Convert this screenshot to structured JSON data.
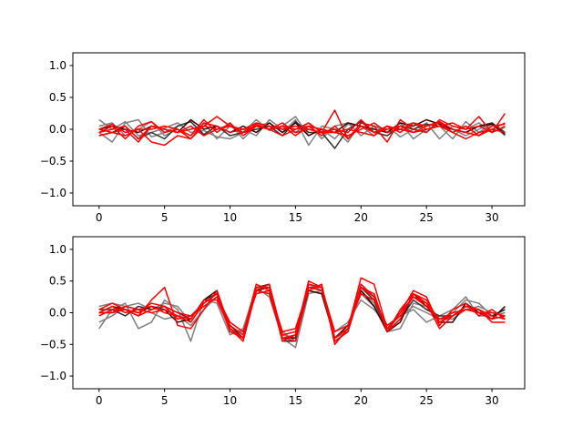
{
  "chart_data": [
    {
      "type": "line",
      "xlim": [
        -2,
        32.5
      ],
      "ylim": [
        -1.2,
        1.2
      ],
      "xticks": [
        0,
        5,
        10,
        15,
        20,
        25,
        30
      ],
      "yticks": [
        -1.0,
        -0.5,
        0.0,
        0.5,
        1.0
      ],
      "xtick_labels": [
        "0",
        "5",
        "10",
        "15",
        "20",
        "25",
        "30"
      ],
      "ytick_labels": [
        "−1.0",
        "−0.5",
        "0.0",
        "0.5",
        "1.0"
      ],
      "x": [
        0,
        1,
        2,
        3,
        4,
        5,
        6,
        7,
        8,
        9,
        10,
        11,
        12,
        13,
        14,
        15,
        16,
        17,
        18,
        19,
        20,
        21,
        22,
        23,
        24,
        25,
        26,
        27,
        28,
        29,
        30,
        31
      ],
      "series": [
        {
          "color": "#7f7f7f",
          "values": [
            0.15,
            0.0,
            0.12,
            -0.1,
            -0.05,
            0.02,
            0.1,
            -0.05,
            -0.02,
            -0.12,
            -0.15,
            -0.05,
            0.15,
            -0.02,
            0.05,
            0.2,
            -0.1,
            0.0,
            -0.15,
            0.08,
            0.05,
            -0.1,
            0.05,
            -0.12,
            0.0,
            0.1,
            -0.15,
            0.05,
            0.0,
            0.1,
            -0.05,
            0.03
          ]
        },
        {
          "color": "#7f7f7f",
          "values": [
            -0.05,
            -0.2,
            0.1,
            0.15,
            -0.12,
            -0.05,
            0.05,
            0.12,
            -0.1,
            0.0,
            0.08,
            -0.15,
            0.05,
            0.1,
            -0.05,
            0.15,
            -0.25,
            0.05,
            0.0,
            -0.2,
            0.1,
            0.05,
            -0.05,
            0.1,
            -0.15,
            0.0,
            0.05,
            -0.15,
            0.12,
            -0.05,
            0.08,
            -0.1
          ]
        },
        {
          "color": "#7f7f7f",
          "values": [
            0.05,
            0.1,
            -0.1,
            0.0,
            0.12,
            -0.1,
            0.0,
            -0.1,
            0.1,
            -0.15,
            0.05,
            0.0,
            -0.1,
            0.15,
            0.0,
            -0.05,
            0.1,
            -0.15,
            0.05,
            0.1,
            -0.1,
            0.05,
            0.0,
            0.05,
            0.1,
            -0.05,
            0.12,
            0.0,
            -0.1,
            0.0,
            0.1,
            -0.08
          ]
        },
        {
          "color": "#333333",
          "values": [
            -0.1,
            -0.05,
            0.05,
            -0.15,
            -0.05,
            -0.15,
            0.05,
            0.12,
            -0.08,
            0.05,
            -0.1,
            -0.05,
            0.0,
            0.05,
            -0.1,
            0.12,
            -0.05,
            -0.05,
            -0.3,
            0.0,
            0.12,
            -0.05,
            -0.1,
            0.05,
            0.0,
            0.08,
            0.05,
            0.0,
            -0.05,
            0.05,
            0.1,
            -0.05
          ]
        },
        {
          "color": "#3a0000",
          "values": [
            0.0,
            0.05,
            0.0,
            -0.05,
            0.05,
            0.0,
            -0.05,
            0.15,
            0.0,
            0.05,
            -0.05,
            0.05,
            -0.05,
            0.1,
            -0.05,
            0.1,
            -0.1,
            0.0,
            -0.05,
            0.1,
            0.05,
            0.0,
            -0.05,
            0.1,
            0.05,
            0.15,
            0.08,
            0.0,
            -0.05,
            0.05,
            0.08,
            -0.08
          ]
        },
        {
          "color": "#ff0000",
          "values": [
            -0.05,
            0.0,
            0.05,
            -0.15,
            0.05,
            0.0,
            -0.05,
            0.0,
            0.05,
            0.2,
            0.05,
            -0.05,
            0.05,
            0.0,
            0.1,
            -0.05,
            0.0,
            -0.05,
            0.3,
            -0.15,
            0.1,
            0.05,
            -0.2,
            0.15,
            0.0,
            -0.05,
            0.15,
            0.05,
            0.0,
            0.2,
            -0.05,
            0.25
          ]
        },
        {
          "color": "#ff0000",
          "values": [
            0.0,
            0.08,
            -0.05,
            0.0,
            0.0,
            0.05,
            0.0,
            -0.1,
            0.15,
            -0.05,
            0.1,
            -0.1,
            0.05,
            0.0,
            -0.1,
            0.0,
            0.1,
            -0.05,
            0.0,
            -0.05,
            0.15,
            -0.05,
            0.05,
            0.0,
            0.1,
            0.05,
            0.1,
            -0.05,
            0.05,
            -0.1,
            0.05,
            0.08
          ]
        },
        {
          "color": "#ff0000",
          "values": [
            -0.1,
            -0.05,
            0.0,
            -0.2,
            0.05,
            0.0,
            -0.05,
            0.05,
            -0.1,
            0.0,
            0.05,
            -0.05,
            0.08,
            0.0,
            0.05,
            -0.1,
            0.05,
            -0.1,
            0.05,
            -0.15,
            0.05,
            -0.05,
            0.0,
            0.05,
            -0.05,
            0.05,
            0.12,
            0.0,
            -0.05,
            -0.1,
            0.0,
            -0.05
          ]
        },
        {
          "color": "#ff0000",
          "values": [
            -0.05,
            0.05,
            -0.15,
            0.05,
            0.12,
            -0.05,
            0.0,
            -0.15,
            0.05,
            0.0,
            0.05,
            0.0,
            0.05,
            0.0,
            0.05,
            0.0,
            0.05,
            0.0,
            -0.05,
            -0.1,
            0.0,
            0.1,
            -0.05,
            0.0,
            -0.05,
            0.0,
            0.05,
            -0.05,
            -0.15,
            -0.05,
            0.0,
            0.1
          ]
        },
        {
          "color": "#ff0000",
          "values": [
            0.0,
            -0.05,
            -0.1,
            0.0,
            -0.2,
            -0.25,
            -0.1,
            -0.15,
            0.1,
            0.05,
            -0.05,
            0.0,
            0.1,
            0.05,
            0.0,
            0.05,
            0.0,
            -0.05,
            -0.05,
            0.0,
            -0.05,
            -0.1,
            0.05,
            -0.05,
            0.1,
            0.0,
            0.05,
            0.1,
            0.0,
            0.05,
            -0.05,
            0.05
          ]
        }
      ]
    },
    {
      "type": "line",
      "xlim": [
        -2,
        32.5
      ],
      "ylim": [
        -1.2,
        1.2
      ],
      "xticks": [
        0,
        5,
        10,
        15,
        20,
        25,
        30
      ],
      "yticks": [
        -1.0,
        -0.5,
        0.0,
        0.5,
        1.0
      ],
      "xtick_labels": [
        "0",
        "5",
        "10",
        "15",
        "20",
        "25",
        "30"
      ],
      "ytick_labels": [
        "−1.0",
        "−0.5",
        "0.0",
        "0.5",
        "1.0"
      ],
      "x": [
        0,
        1,
        2,
        3,
        4,
        5,
        6,
        7,
        8,
        9,
        10,
        11,
        12,
        13,
        14,
        15,
        16,
        17,
        18,
        19,
        20,
        21,
        22,
        23,
        24,
        25,
        26,
        27,
        28,
        29,
        30,
        31
      ],
      "series": [
        {
          "color": "#7f7f7f",
          "values": [
            -0.25,
            0.05,
            0.15,
            -0.25,
            -0.15,
            0.2,
            0.05,
            -0.45,
            0.2,
            0.15,
            -0.35,
            -0.25,
            0.4,
            0.25,
            -0.4,
            -0.55,
            0.3,
            0.35,
            -0.3,
            -0.15,
            0.2,
            0.05,
            -0.2,
            -0.05,
            0.05,
            -0.15,
            -0.05,
            0.05,
            0.25,
            -0.05,
            -0.05,
            0.0
          ]
        },
        {
          "color": "#7f7f7f",
          "values": [
            0.1,
            0.15,
            0.1,
            0.15,
            0.05,
            0.15,
            0.1,
            -0.15,
            0.15,
            0.3,
            -0.25,
            -0.4,
            0.35,
            0.3,
            -0.35,
            -0.4,
            0.45,
            0.35,
            -0.4,
            -0.3,
            0.35,
            0.15,
            -0.3,
            -0.25,
            0.15,
            0.1,
            -0.15,
            0.0,
            0.2,
            0.15,
            -0.05,
            0.05
          ]
        },
        {
          "color": "#7f7f7f",
          "values": [
            -0.15,
            -0.05,
            0.1,
            0.05,
            0.0,
            -0.1,
            -0.05,
            -0.2,
            0.05,
            0.25,
            -0.3,
            -0.3,
            0.3,
            0.35,
            -0.3,
            -0.45,
            0.35,
            0.3,
            -0.4,
            -0.25,
            0.3,
            0.1,
            -0.25,
            -0.05,
            0.1,
            0.0,
            -0.1,
            -0.1,
            0.05,
            0.1,
            0.0,
            -0.05
          ]
        },
        {
          "color": "#333333",
          "values": [
            0.05,
            0.05,
            -0.05,
            0.1,
            0.05,
            0.1,
            0.0,
            -0.1,
            0.2,
            0.3,
            -0.2,
            -0.4,
            0.4,
            0.45,
            -0.45,
            -0.45,
            0.45,
            0.4,
            -0.45,
            -0.3,
            0.4,
            0.2,
            -0.3,
            -0.1,
            0.2,
            0.05,
            -0.05,
            -0.05,
            0.1,
            0.05,
            -0.05,
            0.05
          ]
        },
        {
          "color": "#3a0000",
          "values": [
            0.0,
            0.1,
            0.05,
            0.0,
            0.1,
            0.05,
            -0.15,
            -0.1,
            0.2,
            0.35,
            -0.25,
            -0.4,
            0.35,
            0.4,
            -0.4,
            -0.4,
            0.35,
            0.3,
            -0.4,
            -0.2,
            0.35,
            0.1,
            -0.3,
            -0.15,
            0.3,
            0.1,
            -0.15,
            -0.15,
            0.15,
            0.0,
            -0.1,
            0.1
          ]
        },
        {
          "color": "#ff0000",
          "values": [
            0.05,
            0.15,
            0.05,
            -0.05,
            0.2,
            0.4,
            -0.2,
            -0.25,
            0.05,
            0.35,
            -0.25,
            -0.45,
            0.35,
            0.45,
            -0.35,
            -0.3,
            0.35,
            0.45,
            -0.5,
            -0.25,
            0.55,
            0.45,
            -0.25,
            0.0,
            0.35,
            0.25,
            -0.2,
            0.05,
            0.15,
            -0.05,
            0.05,
            -0.1
          ]
        },
        {
          "color": "#ff0000",
          "values": [
            0.0,
            0.0,
            0.1,
            0.05,
            0.0,
            0.05,
            -0.05,
            -0.15,
            0.15,
            0.3,
            -0.2,
            -0.35,
            0.45,
            0.35,
            -0.45,
            -0.35,
            0.5,
            0.4,
            -0.4,
            -0.25,
            0.45,
            0.25,
            -0.3,
            -0.1,
            0.3,
            0.15,
            -0.25,
            -0.05,
            0.1,
            0.05,
            -0.05,
            -0.1
          ]
        },
        {
          "color": "#ff0000",
          "values": [
            -0.05,
            0.05,
            0.05,
            -0.05,
            0.05,
            0.1,
            0.0,
            -0.05,
            0.1,
            0.25,
            -0.15,
            -0.3,
            0.3,
            0.35,
            -0.3,
            -0.25,
            0.4,
            0.4,
            -0.3,
            -0.2,
            0.3,
            0.2,
            -0.2,
            -0.05,
            0.25,
            0.1,
            -0.1,
            0.0,
            0.05,
            0.0,
            0.0,
            -0.05
          ]
        },
        {
          "color": "#ff0000",
          "values": [
            0.0,
            0.1,
            0.0,
            0.05,
            0.1,
            0.0,
            -0.05,
            -0.1,
            0.2,
            0.2,
            -0.25,
            -0.4,
            0.4,
            0.4,
            -0.4,
            -0.35,
            0.45,
            0.4,
            -0.45,
            -0.3,
            0.4,
            0.3,
            -0.3,
            0.05,
            0.3,
            0.2,
            -0.15,
            -0.05,
            0.05,
            0.05,
            -0.1,
            -0.05
          ]
        },
        {
          "color": "#ff0000",
          "values": [
            0.0,
            0.0,
            0.05,
            0.0,
            0.15,
            0.1,
            -0.1,
            -0.05,
            0.15,
            0.3,
            -0.3,
            -0.4,
            0.35,
            0.3,
            -0.4,
            -0.45,
            0.4,
            0.35,
            -0.4,
            -0.25,
            0.4,
            0.25,
            -0.3,
            0.0,
            0.25,
            0.15,
            -0.1,
            -0.05,
            0.1,
            0.05,
            -0.15,
            -0.15
          ]
        }
      ]
    }
  ]
}
